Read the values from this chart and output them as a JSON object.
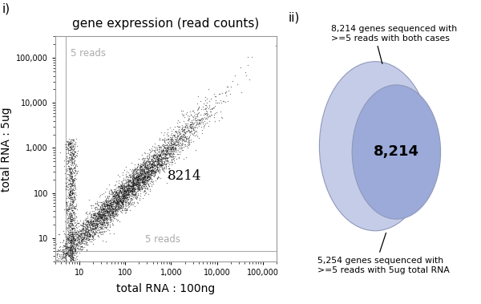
{
  "title": "gene expression (read counts)",
  "xlabel": "total RNA : 100ng",
  "ylabel": "total RNA : 5ug",
  "scatter_label_8214": "8214",
  "threshold_label_top": "5 reads",
  "threshold_label_bottom": "5 reads",
  "threshold_value": 5,
  "venn_intersection_label": "8,214",
  "venn_top_text": "8,214 genes sequenced with\n>=5 reads with both cases",
  "venn_bottom_text": "5,254 genes sequenced with\n>=5 reads with 5ug total RNA",
  "venn_circle1_color": "#c5cce8",
  "venn_circle2_color": "#9baad8",
  "venn_edge_color": "#9099bb",
  "scatter_color": "#111111",
  "threshold_color": "#aaaaaa",
  "panel_i_label": "i)",
  "panel_ii_label": "ii)",
  "random_seed": 42,
  "n_points_main": 4500,
  "n_points_vertical": 900,
  "background_color": "#ffffff",
  "scatter_xlim_low": 3,
  "scatter_xlim_high": 200000,
  "scatter_ylim_low": 3,
  "scatter_ylim_high": 300000,
  "ytick_vals": [
    10,
    100,
    1000,
    10000,
    100000
  ],
  "ytick_labels": [
    "10",
    "100",
    "1,000",
    "10,000",
    "100,000"
  ],
  "xtick_vals": [
    10,
    100,
    1000,
    10000,
    100000
  ],
  "xtick_labels": [
    "10",
    "100",
    "1,000",
    "10,000",
    "100,000"
  ]
}
